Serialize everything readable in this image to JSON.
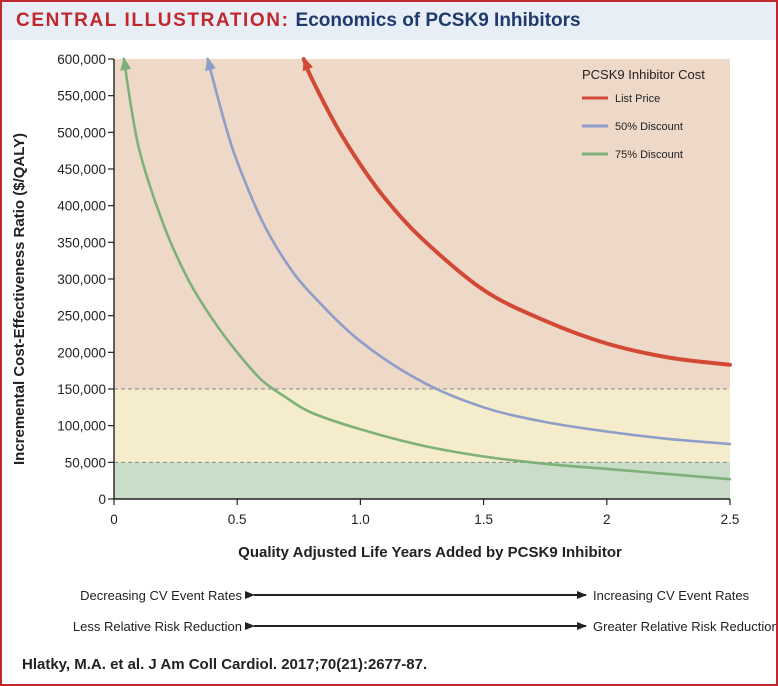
{
  "header": {
    "label": "CENTRAL ILLUSTRATION:",
    "title": "Economics of PCSK9 Inhibitors"
  },
  "colors": {
    "accent_red": "#c0282e",
    "header_bg": "#e8eef6",
    "title_blue": "#1f3a6e",
    "band_high": "#eed8c8",
    "band_mid": "#f5eccb",
    "band_low": "#c9ddc8"
  },
  "chart_data": {
    "type": "line",
    "xlabel": "Quality Adjusted Life Years Added by PCSK9 Inhibitor",
    "ylabel": "Incremental Cost-Effectiveness Ratio ($/QALY)",
    "xlim": [
      0,
      2.5
    ],
    "ylim": [
      0,
      600000
    ],
    "x_ticks": [
      "0",
      "0.5",
      "1.0",
      "1.5",
      "2",
      "2.5"
    ],
    "y_ticks": [
      "0",
      "50,000",
      "100,000",
      "150,000",
      "200,000",
      "250,000",
      "300,000",
      "350,000",
      "400,000",
      "450,000",
      "500,000",
      "550,000",
      "600,000"
    ],
    "thresholds": [
      50000,
      150000
    ],
    "legend_title": "PCSK9 Inhibitor Cost",
    "legend_position": "top-right",
    "series": [
      {
        "name": "List Price",
        "color": "#d24a36",
        "x": [
          0.77,
          0.8,
          0.9,
          1.0,
          1.1,
          1.25,
          1.5,
          1.75,
          2.0,
          2.25,
          2.5
        ],
        "y": [
          600000,
          575000,
          510000,
          456000,
          410000,
          355000,
          285000,
          243000,
          212000,
          193000,
          183000
        ]
      },
      {
        "name": "50% Discount",
        "color": "#8e9ec8",
        "x": [
          0.38,
          0.45,
          0.5,
          0.6,
          0.7,
          0.8,
          1.0,
          1.25,
          1.5,
          1.75,
          2.0,
          2.25,
          2.5
        ],
        "y": [
          600000,
          512000,
          460000,
          380000,
          322000,
          280000,
          215000,
          160000,
          125000,
          105000,
          92000,
          82000,
          75000
        ]
      },
      {
        "name": "75% Discount",
        "color": "#7fb07a",
        "x": [
          0.04,
          0.1,
          0.2,
          0.3,
          0.4,
          0.5,
          0.6,
          0.7,
          0.8,
          1.0,
          1.25,
          1.5,
          1.75,
          2.0,
          2.25,
          2.5
        ],
        "y": [
          600000,
          480000,
          375000,
          300000,
          245000,
          200000,
          162000,
          138000,
          118000,
          95000,
          73000,
          58000,
          48000,
          41000,
          34000,
          27000
        ]
      }
    ]
  },
  "annotations": {
    "row1_left": "Decreasing CV Event Rates",
    "row1_right": "Increasing CV Event Rates",
    "row2_left": "Less Relative Risk Reduction",
    "row2_right": "Greater Relative Risk Reduction"
  },
  "citation": "Hlatky, M.A. et al. J Am Coll Cardiol. 2017;70(21):2677-87."
}
